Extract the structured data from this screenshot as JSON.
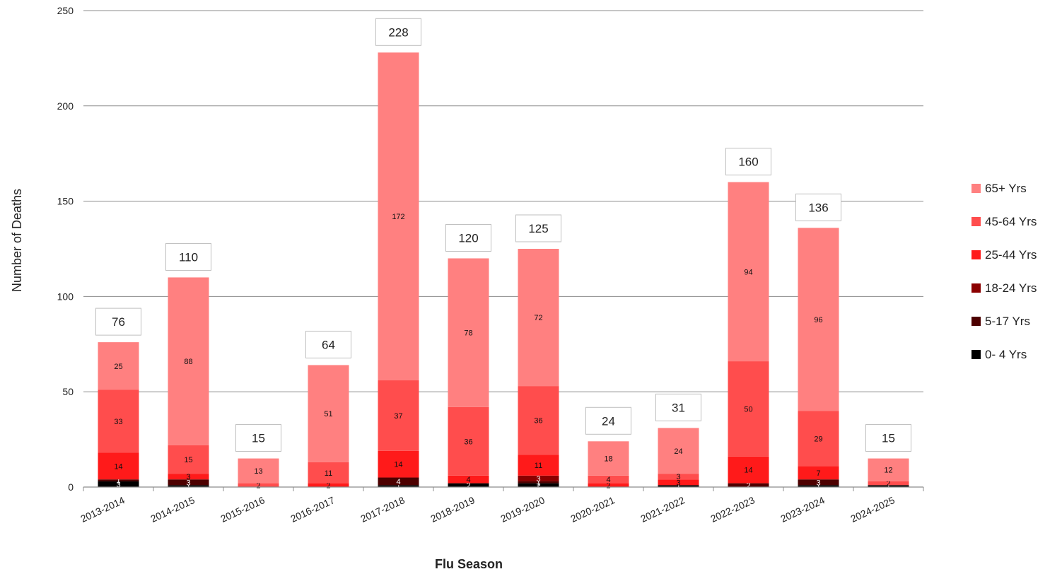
{
  "chart_data": {
    "type": "bar",
    "stacked": true,
    "xlabel": "Flu Season",
    "ylabel": "Number of Deaths",
    "ylim": [
      0,
      250
    ],
    "yticks": [
      0,
      50,
      100,
      150,
      200,
      250
    ],
    "grid": true,
    "legend_position": "right",
    "categories": [
      "2013-2014",
      "2014-2015",
      "2015-2016",
      "2016-2017",
      "2017-2018",
      "2018-2019",
      "2019-2020",
      "2020-2021",
      "2021-2022",
      "2022-2023",
      "2023-2024",
      "2024-2025"
    ],
    "totals": [
      76,
      110,
      15,
      64,
      228,
      120,
      125,
      24,
      31,
      160,
      136,
      15
    ],
    "series": [
      {
        "name": "0- 4 Yrs",
        "color": "#000000",
        "values": [
          3,
          1,
          0,
          0,
          1,
          2,
          2,
          0,
          1,
          0,
          1,
          1
        ]
      },
      {
        "name": "5-17 Yrs",
        "color": "#4d0000",
        "values": [
          1,
          3,
          0,
          0,
          4,
          0,
          1,
          0,
          0,
          2,
          3,
          0
        ]
      },
      {
        "name": "18-24 Yrs",
        "color": "#8b0000",
        "values": [
          0,
          0,
          0,
          0,
          0,
          0,
          3,
          0,
          0,
          0,
          0,
          0
        ]
      },
      {
        "name": "25-44 Yrs",
        "color": "#ff1a1a",
        "values": [
          14,
          3,
          0,
          2,
          14,
          4,
          11,
          2,
          3,
          14,
          7,
          0
        ]
      },
      {
        "name": "45-64 Yrs",
        "color": "#ff4d4d",
        "values": [
          33,
          15,
          2,
          11,
          37,
          36,
          36,
          4,
          3,
          50,
          29,
          2
        ]
      },
      {
        "name": "65+ Yrs",
        "color": "#ff8080",
        "values": [
          25,
          88,
          13,
          51,
          172,
          78,
          72,
          18,
          24,
          94,
          96,
          12
        ]
      }
    ]
  }
}
